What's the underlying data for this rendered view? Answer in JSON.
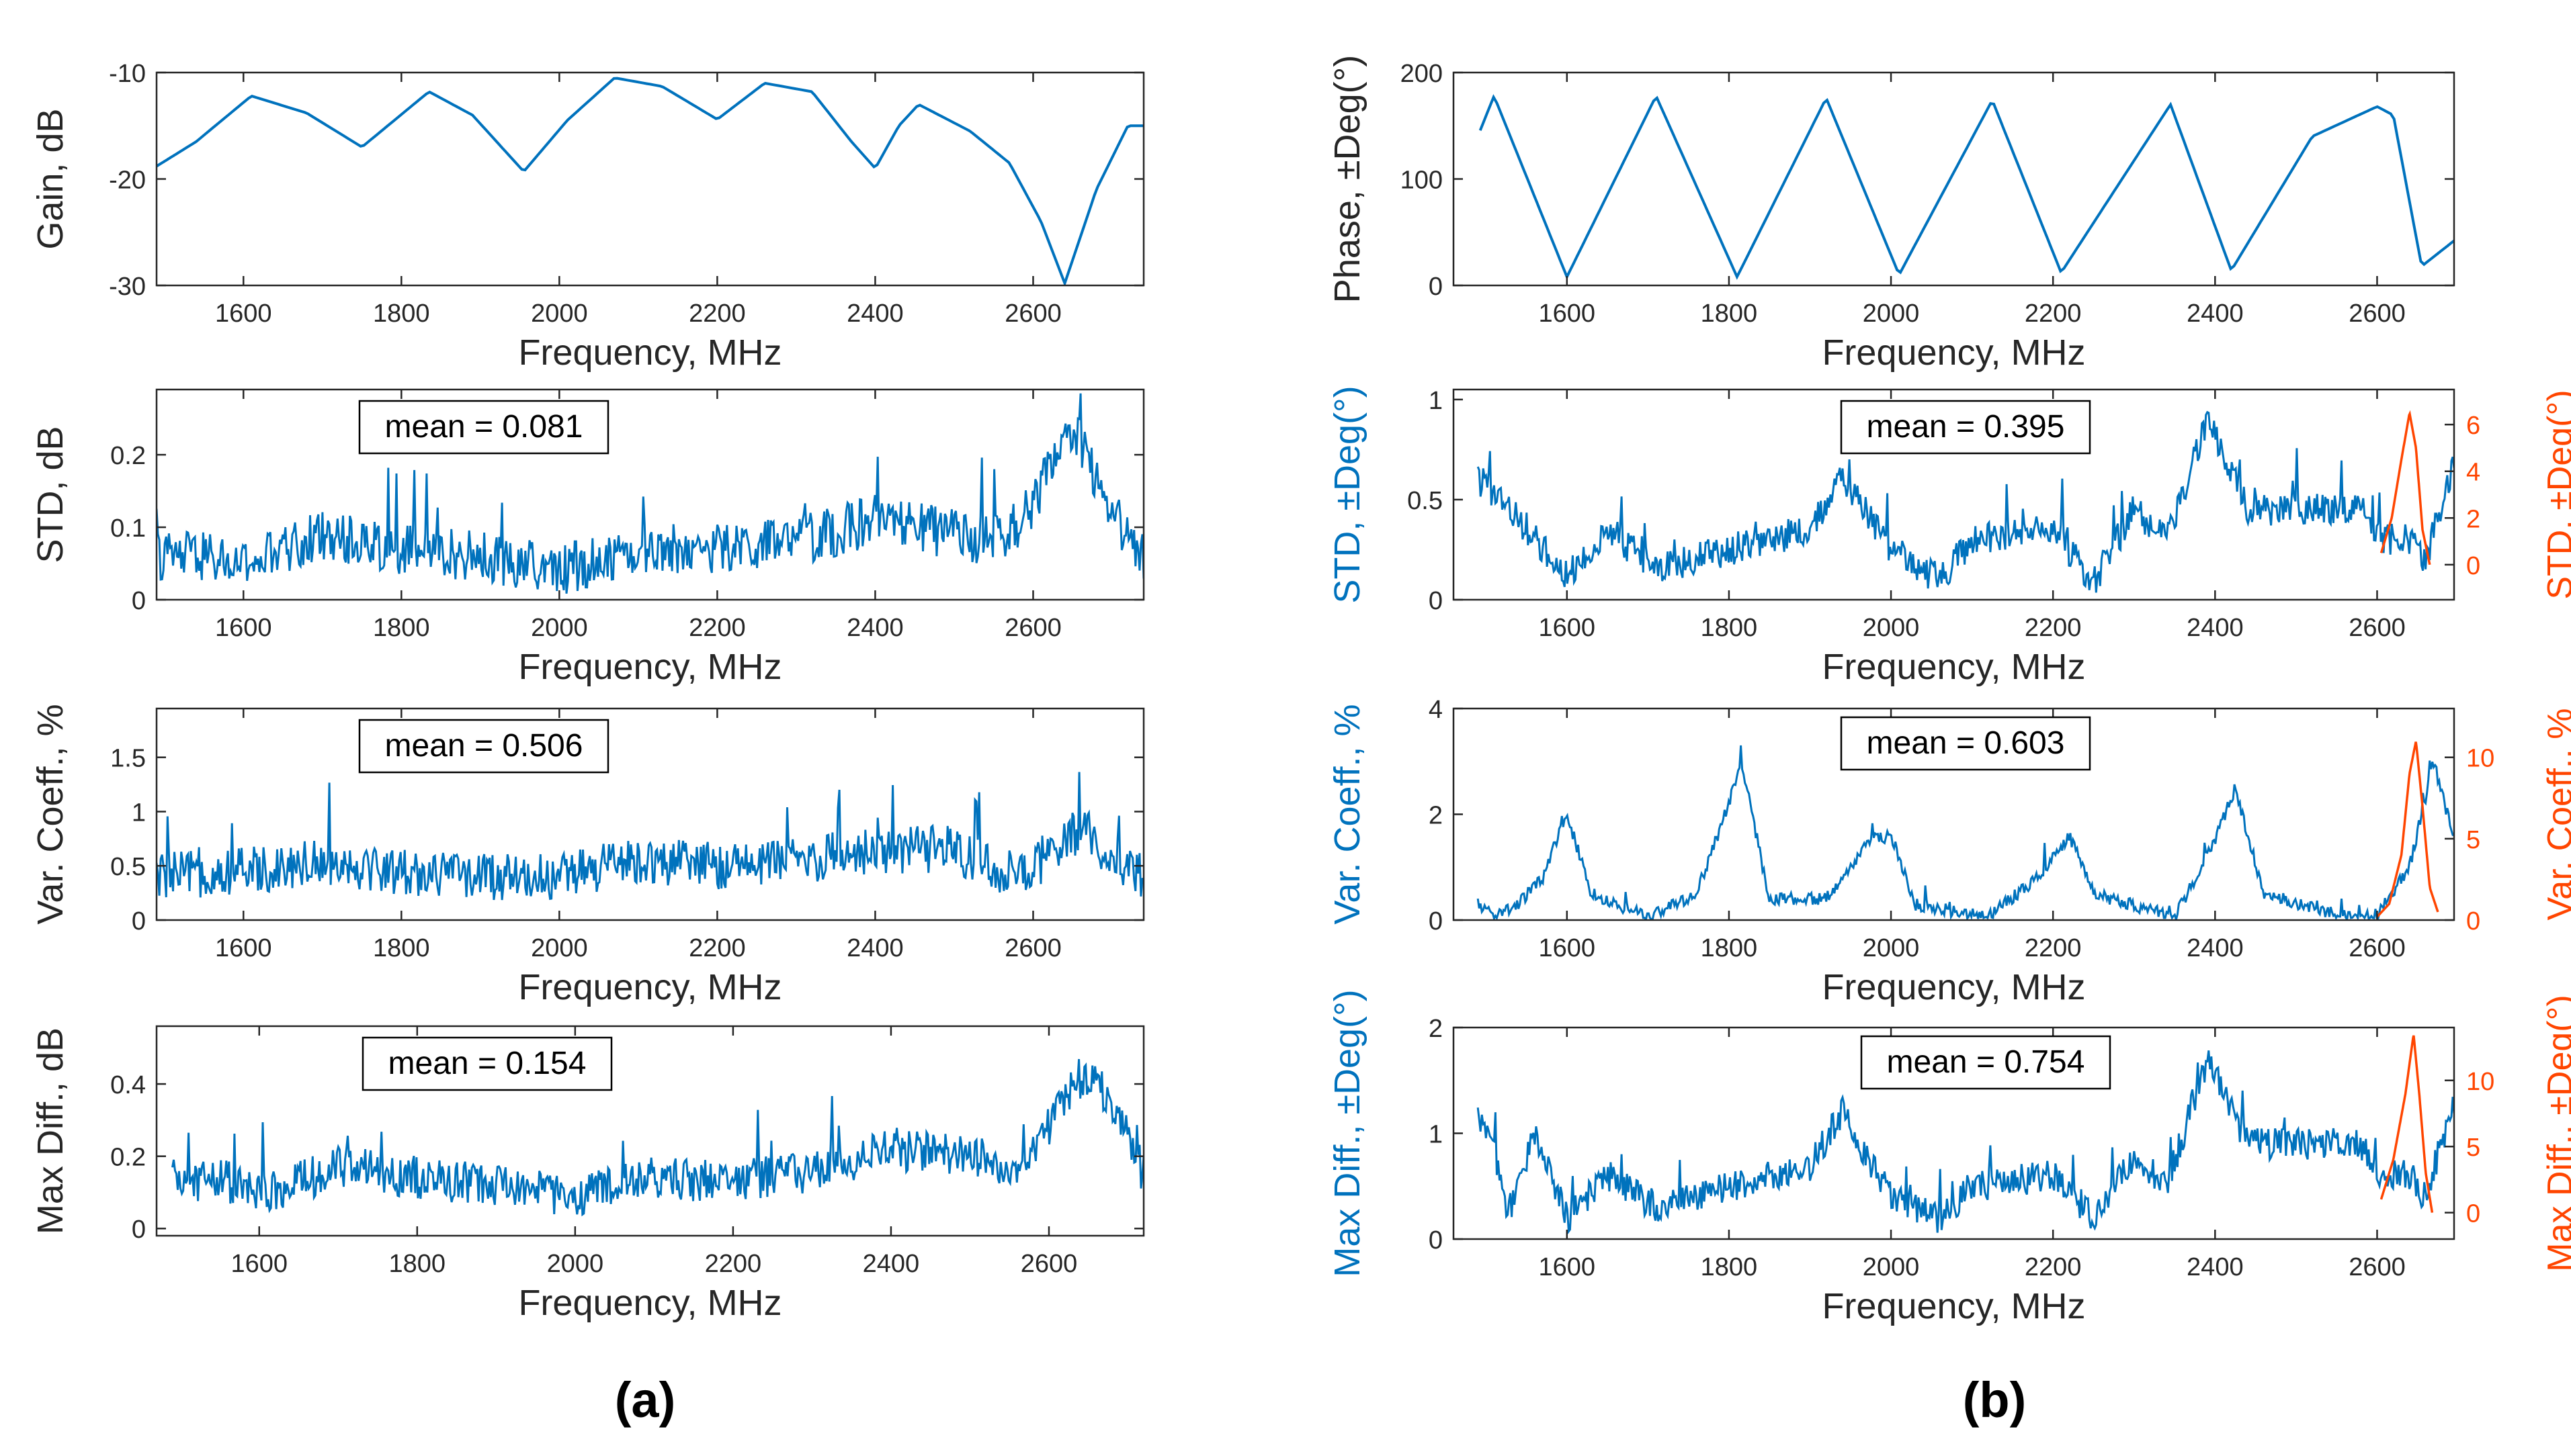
{
  "figure": {
    "left_caption": "(a)",
    "right_caption": "(b)"
  },
  "colors": {
    "series_blue": "#0072BD",
    "series_orange": "#FF4500",
    "axis": "#262626",
    "mean_box_border": "#000000",
    "background": "#ffffff"
  },
  "chart_data": [
    {
      "id": "a1",
      "type": "line",
      "panel": "a",
      "title": "",
      "xlabel": "Frequency, MHz",
      "ylabel": "Gain, dB",
      "xlim": [
        1490,
        2740
      ],
      "ylim": [
        -30,
        -10
      ],
      "xticks": [
        1600,
        1800,
        2000,
        2200,
        2400,
        2600
      ],
      "yticks": [
        -30,
        -20,
        -10
      ],
      "ytick_labels": [
        "-30",
        "-20",
        "-10"
      ],
      "noise": 0,
      "mean_label": null,
      "series": [
        {
          "name": "Gain",
          "color": "#0072BD",
          "x": [
            1490,
            1540,
            1610,
            1680,
            1750,
            1835,
            1890,
            1955,
            2010,
            2070,
            2130,
            2200,
            2260,
            2320,
            2370,
            2400,
            2430,
            2455,
            2520,
            2570,
            2610,
            2640,
            2680,
            2720,
            2740
          ],
          "y": [
            -18.8,
            -16.5,
            -12.2,
            -13.8,
            -17,
            -11.8,
            -14,
            -19.3,
            -14.5,
            -10.5,
            -11.3,
            -14.4,
            -11,
            -11.8,
            -16.5,
            -19,
            -15,
            -13,
            -15.5,
            -18.5,
            -24,
            -29.8,
            -21,
            -15,
            -15
          ]
        }
      ],
      "secondary": null
    },
    {
      "id": "a2",
      "type": "line",
      "panel": "a",
      "title": "",
      "xlabel": "Frequency, MHz",
      "ylabel": "STD, dB",
      "xlim": [
        1490,
        2740
      ],
      "ylim": [
        0,
        0.29
      ],
      "xticks": [
        1600,
        1800,
        2000,
        2200,
        2400,
        2600
      ],
      "yticks": [
        0,
        0.1,
        0.2
      ],
      "ytick_labels": [
        "0",
        "0.1",
        "0.2"
      ],
      "noise": 0.035,
      "mean_label": "mean = 0.081",
      "series": [
        {
          "name": "STD",
          "color": "#0072BD",
          "x": [
            1490,
            1550,
            1600,
            1700,
            1800,
            1900,
            2000,
            2100,
            2200,
            2300,
            2400,
            2500,
            2560,
            2600,
            2640,
            2660,
            2700,
            2740
          ],
          "y": [
            0.06,
            0.06,
            0.045,
            0.09,
            0.07,
            0.06,
            0.04,
            0.07,
            0.07,
            0.08,
            0.11,
            0.09,
            0.08,
            0.13,
            0.22,
            0.22,
            0.12,
            0.06
          ]
        }
      ],
      "secondary": null
    },
    {
      "id": "a3",
      "type": "line",
      "panel": "a",
      "title": "",
      "xlabel": "Frequency, MHz",
      "ylabel": "Var. Coeff., %",
      "xlim": [
        1490,
        2740
      ],
      "ylim": [
        0,
        1.95
      ],
      "xticks": [
        1600,
        1800,
        2000,
        2200,
        2400,
        2600
      ],
      "yticks": [
        0,
        0.5,
        1,
        1.5
      ],
      "ytick_labels": [
        "0",
        "0.5",
        "1",
        "1.5"
      ],
      "noise": 0.22,
      "mean_label": "mean = 0.506",
      "series": [
        {
          "name": "Var. Coeff.",
          "color": "#0072BD",
          "x": [
            1490,
            1600,
            1700,
            1800,
            1900,
            2000,
            2100,
            2200,
            2300,
            2400,
            2500,
            2580,
            2620,
            2660,
            2700,
            2740
          ],
          "y": [
            0.4,
            0.45,
            0.55,
            0.45,
            0.4,
            0.4,
            0.55,
            0.5,
            0.55,
            0.65,
            0.65,
            0.4,
            0.55,
            0.85,
            0.6,
            0.4
          ]
        }
      ],
      "secondary": null
    },
    {
      "id": "a4",
      "type": "line",
      "panel": "a",
      "title": "",
      "xlabel": "Frequency, MHz",
      "ylabel": "Max Diff., dB",
      "xlim": [
        1470,
        2720
      ],
      "ylim": [
        -0.02,
        0.56
      ],
      "xticks": [
        1600,
        1800,
        2000,
        2200,
        2400,
        2600
      ],
      "yticks": [
        0,
        0.2,
        0.4
      ],
      "ytick_labels": [
        "0",
        "0.2",
        "0.4"
      ],
      "noise": 0.06,
      "mean_label": "mean = 0.154",
      "series": [
        {
          "name": "Max Diff.",
          "color": "#0072BD",
          "x": [
            1490,
            1550,
            1600,
            1700,
            1800,
            1900,
            2000,
            2100,
            2200,
            2300,
            2400,
            2500,
            2560,
            2600,
            2640,
            2660,
            2700,
            2720
          ],
          "y": [
            0.13,
            0.14,
            0.09,
            0.17,
            0.14,
            0.12,
            0.09,
            0.14,
            0.13,
            0.16,
            0.22,
            0.2,
            0.17,
            0.28,
            0.42,
            0.42,
            0.25,
            0.15
          ]
        }
      ],
      "secondary": null
    },
    {
      "id": "b1",
      "type": "line",
      "panel": "b",
      "title": "",
      "xlabel": "Frequency, MHz",
      "ylabel": "Phase, ±Deg(°)",
      "xlim": [
        1460,
        2695
      ],
      "ylim": [
        0,
        200
      ],
      "xticks": [
        1600,
        1800,
        2000,
        2200,
        2400,
        2600
      ],
      "yticks": [
        0,
        100,
        200
      ],
      "ytick_labels": [
        "0",
        "100",
        "200"
      ],
      "noise": 0,
      "mean_label": null,
      "series": [
        {
          "name": "Phase",
          "color": "#0072BD",
          "x": [
            1490,
            1510,
            1600,
            1710,
            1810,
            1920,
            2010,
            2125,
            2210,
            2345,
            2420,
            2520,
            2600,
            2620,
            2655,
            2695
          ],
          "y": [
            140,
            178,
            8,
            178,
            8,
            176,
            10,
            174,
            12,
            170,
            14,
            140,
            168,
            160,
            18,
            42
          ]
        }
      ],
      "secondary": null
    },
    {
      "id": "b2",
      "type": "line",
      "panel": "b",
      "title": "",
      "xlabel": "Frequency, MHz",
      "ylabel": "STD, ±Deg(°)",
      "xlim": [
        1460,
        2695
      ],
      "ylim": [
        0,
        1.05
      ],
      "xticks": [
        1600,
        1800,
        2000,
        2200,
        2400,
        2600
      ],
      "yticks": [
        0,
        0.5,
        1
      ],
      "ytick_labels": [
        "0",
        "0.5",
        "1"
      ],
      "noise": 0.08,
      "mean_label": "mean = 0.395",
      "series": [
        {
          "name": "STD",
          "color": "#0072BD",
          "x": [
            1490,
            1520,
            1600,
            1650,
            1710,
            1800,
            1900,
            1940,
            2000,
            2060,
            2100,
            2200,
            2250,
            2300,
            2340,
            2390,
            2440,
            2500,
            2580,
            2600,
            2640,
            2660,
            2695
          ],
          "y": [
            0.6,
            0.5,
            0.12,
            0.35,
            0.15,
            0.25,
            0.35,
            0.6,
            0.25,
            0.1,
            0.3,
            0.35,
            0.08,
            0.45,
            0.3,
            0.9,
            0.45,
            0.45,
            0.45,
            0.3,
            0.3,
            0.2,
            0.7
          ]
        }
      ],
      "secondary": {
        "name": "STD (right axis)",
        "color": "#FF4500",
        "ylabel": "STD, ±Deg(°)",
        "ylim": [
          -1.5,
          7.5
        ],
        "yticks": [
          0,
          2,
          4,
          6
        ],
        "ytick_labels": [
          "0",
          "2",
          "4",
          "6"
        ],
        "x": [
          2605,
          2618,
          2630,
          2640,
          2648,
          2656,
          2665
        ],
        "y": [
          0.5,
          2,
          4.5,
          6.5,
          5,
          1.5,
          0
        ]
      }
    },
    {
      "id": "b3",
      "type": "line",
      "panel": "b",
      "title": "",
      "xlabel": "Frequency, MHz",
      "ylabel": "Var. Coeff., %",
      "xlim": [
        1460,
        2695
      ],
      "ylim": [
        0,
        4
      ],
      "xticks": [
        1600,
        1800,
        2000,
        2200,
        2400,
        2600
      ],
      "yticks": [
        0,
        2,
        4
      ],
      "ytick_labels": [
        "0",
        "2",
        "4"
      ],
      "noise": 0.12,
      "mean_label": "mean = 0.603",
      "series": [
        {
          "name": "Var. Coeff.",
          "color": "#0072BD",
          "x": [
            1490,
            1510,
            1540,
            1570,
            1600,
            1630,
            1700,
            1760,
            1800,
            1815,
            1850,
            1920,
            1975,
            2000,
            2030,
            2120,
            2180,
            2220,
            2250,
            2350,
            2400,
            2425,
            2460,
            2550,
            2600,
            2640,
            2670,
            2695
          ],
          "y": [
            0.3,
            0.1,
            0.3,
            0.8,
            2,
            0.5,
            0.05,
            0.5,
            2.2,
            3,
            0.4,
            0.4,
            1.5,
            1.6,
            0.3,
            0.05,
            0.8,
            1.6,
            0.5,
            0.05,
            1.5,
            2.5,
            0.5,
            0.1,
            0.1,
            1,
            3,
            1.5
          ]
        }
      ],
      "secondary": {
        "name": "Var. Coeff. (right axis)",
        "color": "#FF4500",
        "ylabel": "Var. Coeff., %",
        "ylim": [
          0,
          13
        ],
        "yticks": [
          0,
          5,
          10
        ],
        "ytick_labels": [
          "0",
          "5",
          "10"
        ],
        "x": [
          2600,
          2615,
          2630,
          2640,
          2648,
          2656,
          2665,
          2675
        ],
        "y": [
          0.2,
          1,
          4,
          9,
          11,
          7,
          2,
          0.5
        ]
      }
    },
    {
      "id": "b4",
      "type": "line",
      "panel": "b",
      "title": "",
      "xlabel": "Frequency, MHz",
      "ylabel": "Max Diff., ±Deg(°)",
      "xlim": [
        1460,
        2695
      ],
      "ylim": [
        0,
        2
      ],
      "xticks": [
        1600,
        1800,
        2000,
        2200,
        2400,
        2600
      ],
      "yticks": [
        0,
        1,
        2
      ],
      "ytick_labels": [
        "0",
        "1",
        "2"
      ],
      "noise": 0.15,
      "mean_label": "mean = 0.754",
      "series": [
        {
          "name": "Max Diff.",
          "color": "#0072BD",
          "x": [
            1490,
            1510,
            1525,
            1560,
            1600,
            1650,
            1710,
            1800,
            1900,
            1940,
            2000,
            2060,
            2100,
            2200,
            2250,
            2300,
            2340,
            2390,
            2440,
            2500,
            2580,
            2600,
            2640,
            2660,
            2695
          ],
          "y": [
            1.1,
            0.9,
            0.2,
            1.0,
            0.2,
            0.6,
            0.3,
            0.5,
            0.7,
            1.2,
            0.4,
            0.2,
            0.5,
            0.6,
            0.2,
            0.8,
            0.5,
            1.7,
            0.9,
            0.9,
            0.9,
            0.6,
            0.6,
            0.4,
            1.3
          ]
        }
      ],
      "secondary": {
        "name": "Max Diff. (right axis)",
        "color": "#FF4500",
        "ylabel": "Max Diff., ±Deg(°)",
        "ylim": [
          -2,
          14
        ],
        "yticks": [
          0,
          5,
          10
        ],
        "ytick_labels": [
          "0",
          "5",
          "10"
        ],
        "x": [
          2605,
          2620,
          2635,
          2645,
          2652,
          2660,
          2668
        ],
        "y": [
          1,
          4,
          9,
          13.5,
          9,
          3,
          0
        ]
      }
    }
  ]
}
